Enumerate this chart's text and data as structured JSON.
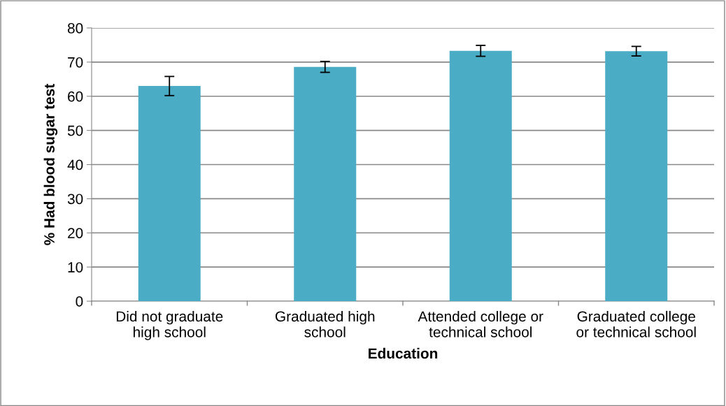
{
  "chart_data": {
    "type": "bar",
    "categories": [
      "Did not graduate\nhigh school",
      "Graduated high\nschool",
      "Attended college or\ntechnical school",
      "Graduated college\nor technical school"
    ],
    "values": [
      63.0,
      68.6,
      73.3,
      73.2
    ],
    "errors": [
      2.8,
      1.6,
      1.6,
      1.4
    ],
    "color": "#4bacc6",
    "xlabel": "Education",
    "ylabel": "% Had blood sugar test",
    "ylim": [
      0,
      80
    ],
    "yticks": [
      0,
      10,
      20,
      30,
      40,
      50,
      60,
      70,
      80
    ],
    "grid": "y"
  }
}
